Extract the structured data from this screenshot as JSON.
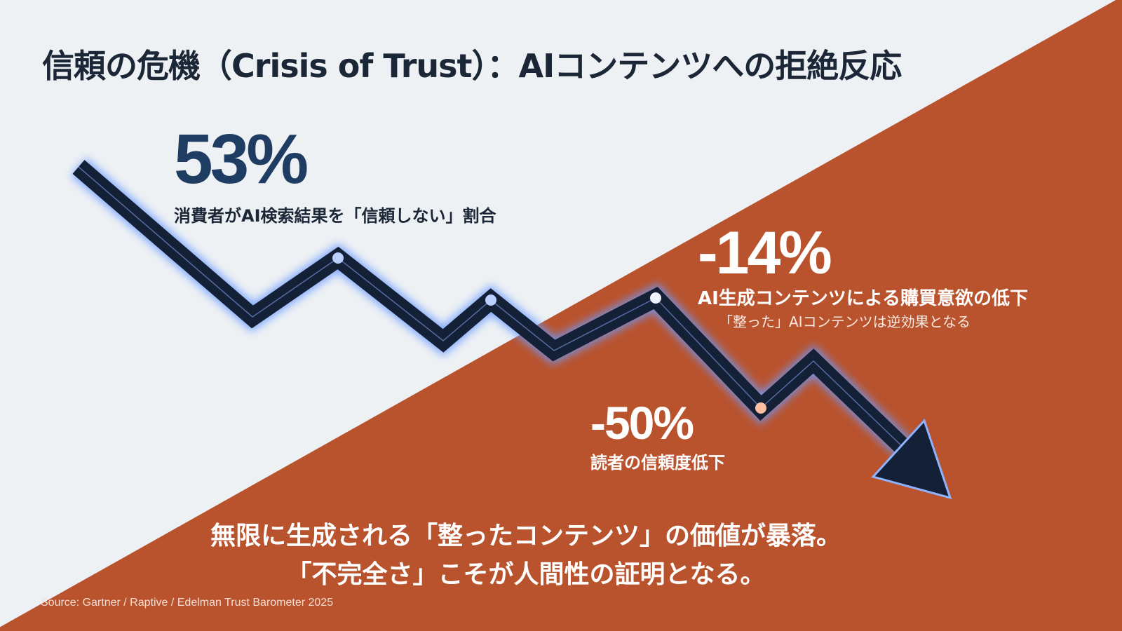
{
  "title": "信頼の危機（Crisis of Trust）：AIコンテンツへの拒絶反応",
  "colors": {
    "background": "#eef1f4",
    "accent": "#b9532e",
    "arrow": "#142036",
    "glow": "#5b8cff",
    "stat_primary": "#1f3d62"
  },
  "stats": [
    {
      "value": "53%",
      "label": "消費者がAI検索結果を「信頼しない」割合"
    },
    {
      "value": "-14%",
      "label": "AI生成コンテンツによる購買意欲の低下",
      "sublabel": "「整った」AIコンテンツは逆効果となる"
    },
    {
      "value": "-50%",
      "label": "読者の信頼度低下"
    }
  ],
  "conclusion": [
    "無限に生成される「整ったコンテンツ」の価値が暴落。",
    "「不完全さ」こそが人間性の証明となる。"
  ],
  "source": "Source: Gartner / Raptive / Edelman Trust Barometer 2025",
  "icons": [
    "downward-trend-arrow-icon"
  ]
}
